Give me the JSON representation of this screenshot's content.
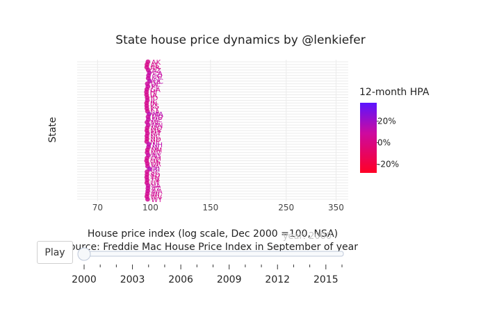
{
  "chart_data": {
    "type": "scatter",
    "title": "State house price dynamics by @lenkiefer",
    "xlabel": "House price index (log scale, Dec 2000 =100, NSA)",
    "source_note": "Source: Freddie Mac House Price Index in September of year",
    "ylabel": "State",
    "x_scale": "log",
    "x_ticks": [
      "70",
      "100",
      "150",
      "250",
      "350"
    ],
    "xlim": [
      61,
      380
    ],
    "grid": true,
    "frame_year": "year: 2000",
    "points": [
      {
        "state": "AK",
        "value": 100.2,
        "hpa": 3.5
      },
      {
        "state": "AL",
        "value": 99.6,
        "hpa": 1.5
      },
      {
        "state": "AR",
        "value": 99.4,
        "hpa": 2.0
      },
      {
        "state": "AZ",
        "value": 100.4,
        "hpa": 6.1
      },
      {
        "state": "CA",
        "value": 101.2,
        "hpa": 11.0
      },
      {
        "state": "CO",
        "value": 100.6,
        "hpa": 9.8
      },
      {
        "state": "CT",
        "value": 100.4,
        "hpa": 9.0
      },
      {
        "state": "DC",
        "value": 101.4,
        "hpa": 13.0
      },
      {
        "state": "DE",
        "value": 99.8,
        "hpa": 7.9
      },
      {
        "state": "FL",
        "value": 100.2,
        "hpa": 8.9
      },
      {
        "state": "GA",
        "value": 99.5,
        "hpa": 5.8
      },
      {
        "state": "HI",
        "value": 99.2,
        "hpa": 4.0
      },
      {
        "state": "IA",
        "value": 99.3,
        "hpa": 3.6
      },
      {
        "state": "ID",
        "value": 99.7,
        "hpa": 2.9
      },
      {
        "state": "IL",
        "value": 99.8,
        "hpa": 6.5
      },
      {
        "state": "IN",
        "value": 99.3,
        "hpa": 3.0
      },
      {
        "state": "KS",
        "value": 99.4,
        "hpa": 3.2
      },
      {
        "state": "KY",
        "value": 99.5,
        "hpa": 3.9
      },
      {
        "state": "LA",
        "value": 99.9,
        "hpa": 3.7
      },
      {
        "state": "MA",
        "value": 101.0,
        "hpa": 14.9
      },
      {
        "state": "MD",
        "value": 100.3,
        "hpa": 7.6
      },
      {
        "state": "ME",
        "value": 100.5,
        "hpa": 10.2
      },
      {
        "state": "MI",
        "value": 99.6,
        "hpa": 6.9
      },
      {
        "state": "MN",
        "value": 100.4,
        "hpa": 9.7
      },
      {
        "state": "MO",
        "value": 99.7,
        "hpa": 4.6
      },
      {
        "state": "MS",
        "value": 99.5,
        "hpa": 2.8
      },
      {
        "state": "MT",
        "value": 99.9,
        "hpa": 4.8
      },
      {
        "state": "NC",
        "value": 99.5,
        "hpa": 4.4
      },
      {
        "state": "ND",
        "value": 99.6,
        "hpa": 2.4
      },
      {
        "state": "NE",
        "value": 99.4,
        "hpa": 3.4
      },
      {
        "state": "NH",
        "value": 100.8,
        "hpa": 13.1
      },
      {
        "state": "NJ",
        "value": 100.6,
        "hpa": 10.3
      },
      {
        "state": "NM",
        "value": 99.9,
        "hpa": 2.6
      },
      {
        "state": "NV",
        "value": 99.7,
        "hpa": 4.9
      },
      {
        "state": "NY",
        "value": 100.5,
        "hpa": 10.8
      },
      {
        "state": "OH",
        "value": 99.6,
        "hpa": 4.2
      },
      {
        "state": "OK",
        "value": 99.3,
        "hpa": 3.1
      },
      {
        "state": "OR",
        "value": 99.8,
        "hpa": 4.3
      },
      {
        "state": "PA",
        "value": 100.0,
        "hpa": 6.0
      },
      {
        "state": "RI",
        "value": 101.3,
        "hpa": 15.7
      },
      {
        "state": "SC",
        "value": 99.6,
        "hpa": 4.9
      },
      {
        "state": "SD",
        "value": 99.6,
        "hpa": 4.1
      },
      {
        "state": "TN",
        "value": 99.4,
        "hpa": 3.5
      },
      {
        "state": "TX",
        "value": 99.7,
        "hpa": 5.0
      },
      {
        "state": "UT",
        "value": 99.5,
        "hpa": 3.0
      },
      {
        "state": "VA",
        "value": 100.3,
        "hpa": 8.3
      },
      {
        "state": "VT",
        "value": 100.2,
        "hpa": 7.7
      },
      {
        "state": "WA",
        "value": 100.1,
        "hpa": 6.7
      },
      {
        "state": "WI",
        "value": 99.8,
        "hpa": 5.4
      },
      {
        "state": "WV",
        "value": 99.5,
        "hpa": 2.2
      },
      {
        "state": "WY",
        "value": 100.0,
        "hpa": 6.3
      }
    ],
    "colorbar": {
      "title": "12-month HPA",
      "tick_labels": [
        "20%",
        "0%",
        "-20%"
      ],
      "tick_values": [
        20,
        0,
        -20
      ],
      "range": [
        -28,
        37
      ],
      "low_color": "#ff0026",
      "mid_color": "#cc0aa0",
      "high_color": "#5b14ff"
    }
  },
  "slider": {
    "play_label": "Play",
    "year_labels": [
      "2000",
      "2003",
      "2006",
      "2009",
      "2012",
      "2015"
    ],
    "years_total": 17,
    "current_value": 2000
  },
  "colors": {
    "grid": "#ebebeb",
    "axis_text": "#444444",
    "slider_rail": "#bec8d9"
  }
}
